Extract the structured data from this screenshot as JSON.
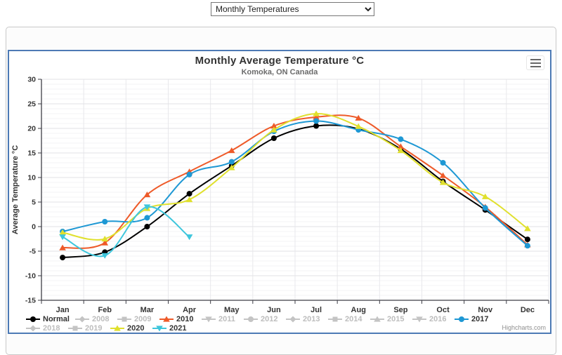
{
  "controls": {
    "dropdown_value": "Monthly Temperatures"
  },
  "credits": {
    "label": "Highcharts.com"
  },
  "chart_data": {
    "type": "line",
    "title": "Monthly Average Temperature °C",
    "subtitle": "Komoka, ON Canada",
    "ylabel": "Average Temperature °C",
    "xlabel": "",
    "categories": [
      "Jan",
      "Feb",
      "Mar",
      "Apr",
      "May",
      "Jun",
      "Jul",
      "Aug",
      "Sep",
      "Oct",
      "Nov",
      "Dec"
    ],
    "ylim": [
      -15,
      30
    ],
    "ytick_step": 5,
    "grid": true,
    "legend_position": "bottom",
    "inactive_color": "#c4c4c4",
    "axis_color": "#3e3e46",
    "series": [
      {
        "name": "Normal",
        "active": true,
        "color": "#000000",
        "marker": "circle",
        "values": [
          -6.3,
          -5.2,
          0.0,
          6.7,
          12.4,
          18.0,
          20.5,
          19.9,
          15.8,
          9.2,
          3.4,
          -2.6
        ]
      },
      {
        "name": "2008",
        "active": false,
        "color": "#c4c4c4",
        "marker": "diamond",
        "values": []
      },
      {
        "name": "2009",
        "active": false,
        "color": "#c4c4c4",
        "marker": "square",
        "values": []
      },
      {
        "name": "2010",
        "active": true,
        "color": "#ee5a29",
        "marker": "triangle",
        "values": [
          -4.3,
          -3.3,
          6.5,
          11.2,
          15.5,
          20.5,
          22.3,
          22.1,
          16.3,
          10.4,
          4.0,
          -3.7
        ]
      },
      {
        "name": "2011",
        "active": false,
        "color": "#c4c4c4",
        "marker": "triangle-down",
        "values": []
      },
      {
        "name": "2012",
        "active": false,
        "color": "#c4c4c4",
        "marker": "circle",
        "values": []
      },
      {
        "name": "2013",
        "active": false,
        "color": "#c4c4c4",
        "marker": "diamond",
        "values": []
      },
      {
        "name": "2014",
        "active": false,
        "color": "#c4c4c4",
        "marker": "square",
        "values": []
      },
      {
        "name": "2015",
        "active": false,
        "color": "#c4c4c4",
        "marker": "triangle",
        "values": []
      },
      {
        "name": "2016",
        "active": false,
        "color": "#c4c4c4",
        "marker": "triangle-down",
        "values": []
      },
      {
        "name": "2017",
        "active": true,
        "color": "#1e98d4",
        "marker": "circle",
        "values": [
          -1.0,
          1.0,
          1.8,
          10.6,
          13.2,
          19.4,
          21.5,
          19.7,
          17.8,
          13.0,
          3.8,
          -3.9
        ]
      },
      {
        "name": "2018",
        "active": false,
        "color": "#c4c4c4",
        "marker": "diamond",
        "values": []
      },
      {
        "name": "2019",
        "active": false,
        "color": "#c4c4c4",
        "marker": "square",
        "values": []
      },
      {
        "name": "2020",
        "active": true,
        "color": "#e0e02d",
        "marker": "triangle",
        "values": [
          -1.2,
          -2.5,
          3.7,
          5.5,
          12.0,
          19.7,
          23.0,
          20.4,
          15.5,
          9.0,
          6.1,
          -0.4
        ]
      },
      {
        "name": "2021",
        "active": true,
        "color": "#3ec6dc",
        "marker": "triangle-down",
        "values": [
          -2.1,
          -5.9,
          4.0,
          -2.1
        ]
      }
    ]
  }
}
